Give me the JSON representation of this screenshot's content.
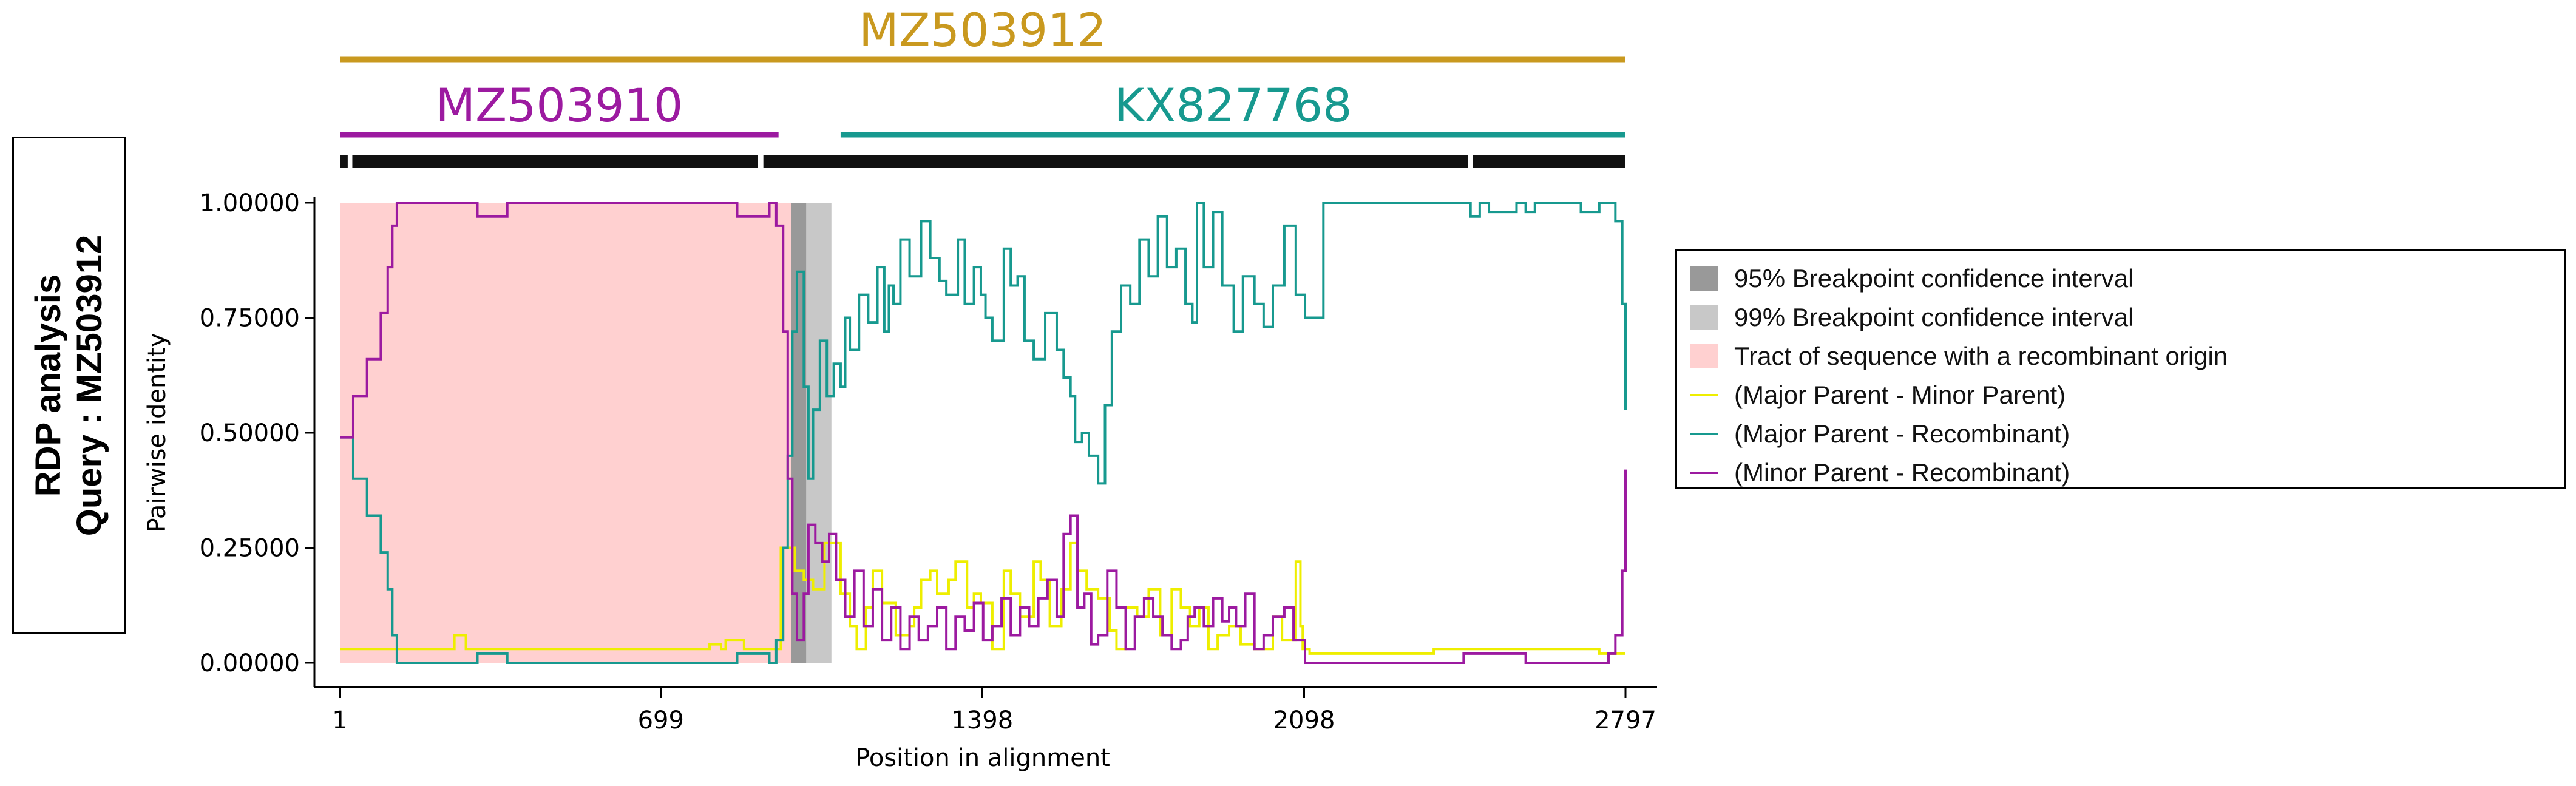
{
  "title": {
    "line1": "RDP analysis",
    "line2": "Query : MZ503912"
  },
  "sequence_bars": [
    {
      "label": "MZ503912",
      "start": 1,
      "end": 2797,
      "color": "#C9991F"
    },
    {
      "label": "MZ503910",
      "start": 1,
      "end": 955,
      "color": "#9C1AA0"
    },
    {
      "label": "KX827768",
      "start": 1090,
      "end": 2797,
      "color": "#17998F"
    }
  ],
  "legend": {
    "items": [
      {
        "label": "95% Breakpoint confidence interval",
        "color": "#999999",
        "kind": "box"
      },
      {
        "label": "99% Breakpoint confidence interval",
        "color": "#C8C8C8",
        "kind": "box"
      },
      {
        "label": "Tract of sequence with a recombinant origin",
        "color": "#FFD0D0",
        "kind": "box"
      },
      {
        "label": "(Major Parent - Minor Parent)",
        "color": "#EEEE00",
        "kind": "line"
      },
      {
        "label": "(Major Parent - Recombinant)",
        "color": "#17998F",
        "kind": "line"
      },
      {
        "label": "(Minor Parent - Recombinant)",
        "color": "#9C1AA0",
        "kind": "line"
      }
    ]
  },
  "chart_data": {
    "type": "line",
    "xlabel": "Position in alignment",
    "ylabel": "Pairwise identity",
    "xlim": [
      1,
      2797
    ],
    "ylim": [
      0,
      1
    ],
    "xticks": [
      1,
      699,
      1398,
      2098,
      2797
    ],
    "xtick_labels": [
      "1",
      "699",
      "1398",
      "2098",
      "2797"
    ],
    "yticks": [
      0,
      0.25,
      0.5,
      0.75,
      1
    ],
    "ytick_labels": [
      "0.00000",
      "0.25000",
      "0.50000",
      "0.75000",
      "1.00000"
    ],
    "recombinant_tract": [
      1,
      1015
    ],
    "breakpoint_ci_95": [
      982,
      1015
    ],
    "breakpoint_ci_99": [
      982,
      1070
    ],
    "informative_sites_track": {
      "start": 1,
      "end": 2797,
      "gaps": [
        [
          18,
          28
        ],
        [
          910,
          922
        ],
        [
          2455,
          2465
        ]
      ]
    },
    "series": [
      {
        "name": "(Major Parent - Minor Parent)",
        "color": "#EEEE00",
        "x": [
          1,
          120,
          240,
          250,
          265,
          275,
          410,
          440,
          790,
          805,
          830,
          840,
          880,
          935,
          960,
          990,
          1010,
          1030,
          1055,
          1090,
          1110,
          1125,
          1145,
          1160,
          1180,
          1210,
          1240,
          1250,
          1265,
          1285,
          1300,
          1325,
          1340,
          1365,
          1380,
          1395,
          1420,
          1445,
          1460,
          1480,
          1510,
          1525,
          1545,
          1570,
          1590,
          1605,
          1625,
          1650,
          1675,
          1690,
          1710,
          1735,
          1760,
          1785,
          1810,
          1830,
          1850,
          1870,
          1890,
          1910,
          1935,
          1960,
          1990,
          2030,
          2050,
          2080,
          2090,
          2095,
          2110,
          2130,
          2380,
          2400,
          2570,
          2585,
          2740,
          2760,
          2797
        ],
        "y": [
          0.03,
          0.03,
          0.03,
          0.06,
          0.06,
          0.03,
          0.03,
          0.03,
          0.03,
          0.04,
          0.03,
          0.05,
          0.03,
          0.03,
          0.25,
          0.2,
          0.18,
          0.16,
          0.26,
          0.15,
          0.08,
          0.03,
          0.12,
          0.2,
          0.13,
          0.06,
          0.08,
          0.12,
          0.18,
          0.2,
          0.15,
          0.18,
          0.22,
          0.12,
          0.15,
          0.13,
          0.03,
          0.2,
          0.15,
          0.1,
          0.22,
          0.18,
          0.08,
          0.16,
          0.26,
          0.2,
          0.16,
          0.14,
          0.07,
          0.03,
          0.12,
          0.1,
          0.16,
          0.06,
          0.16,
          0.12,
          0.08,
          0.12,
          0.03,
          0.06,
          0.08,
          0.04,
          0.03,
          0.1,
          0.05,
          0.22,
          0.08,
          0.03,
          0.02,
          0.02,
          0.03,
          0.03,
          0.03,
          0.03,
          0.02,
          0.02,
          0.02
        ]
      },
      {
        "name": "(Major Parent - Recombinant)",
        "color": "#17998F",
        "x": [
          1,
          30,
          60,
          90,
          105,
          115,
          125,
          280,
          300,
          305,
          350,
          365,
          850,
          865,
          925,
          935,
          950,
          965,
          975,
          985,
          995,
          1010,
          1020,
          1030,
          1045,
          1060,
          1075,
          1090,
          1100,
          1110,
          1130,
          1150,
          1170,
          1185,
          1195,
          1205,
          1220,
          1240,
          1265,
          1285,
          1305,
          1320,
          1345,
          1360,
          1380,
          1395,
          1405,
          1420,
          1445,
          1460,
          1475,
          1490,
          1510,
          1535,
          1560,
          1575,
          1590,
          1600,
          1615,
          1630,
          1650,
          1665,
          1680,
          1700,
          1720,
          1740,
          1760,
          1780,
          1800,
          1820,
          1840,
          1855,
          1865,
          1880,
          1900,
          1920,
          1945,
          1965,
          1990,
          2010,
          2030,
          2055,
          2080,
          2100,
          2140,
          2440,
          2460,
          2480,
          2500,
          2560,
          2580,
          2600,
          2680,
          2700,
          2740,
          2760,
          2775,
          2790,
          2797
        ],
        "y": [
          0.49,
          0.4,
          0.32,
          0.24,
          0.16,
          0.06,
          0.0,
          0.0,
          0.02,
          0.02,
          0.02,
          0.0,
          0.0,
          0.02,
          0.02,
          0.0,
          0.05,
          0.25,
          0.45,
          0.72,
          0.85,
          0.6,
          0.4,
          0.55,
          0.7,
          0.58,
          0.65,
          0.6,
          0.75,
          0.68,
          0.8,
          0.74,
          0.86,
          0.72,
          0.82,
          0.78,
          0.92,
          0.84,
          0.96,
          0.88,
          0.83,
          0.8,
          0.92,
          0.78,
          0.86,
          0.8,
          0.75,
          0.7,
          0.9,
          0.82,
          0.84,
          0.7,
          0.66,
          0.76,
          0.68,
          0.62,
          0.58,
          0.48,
          0.5,
          0.45,
          0.39,
          0.56,
          0.72,
          0.82,
          0.78,
          0.92,
          0.84,
          0.97,
          0.86,
          0.9,
          0.78,
          0.74,
          1.0,
          0.86,
          0.98,
          0.82,
          0.72,
          0.84,
          0.78,
          0.73,
          0.82,
          0.95,
          0.8,
          0.75,
          1.0,
          1.0,
          0.97,
          1.0,
          0.98,
          1.0,
          0.98,
          1.0,
          1.0,
          0.98,
          1.0,
          1.0,
          0.96,
          0.78,
          0.55
        ]
      },
      {
        "name": "(Minor Parent - Recombinant)",
        "color": "#9C1AA0",
        "x": [
          1,
          30,
          60,
          90,
          105,
          115,
          125,
          280,
          300,
          305,
          350,
          365,
          850,
          865,
          925,
          935,
          950,
          965,
          975,
          985,
          995,
          1010,
          1020,
          1035,
          1050,
          1065,
          1080,
          1100,
          1120,
          1140,
          1160,
          1180,
          1200,
          1220,
          1240,
          1260,
          1280,
          1300,
          1320,
          1340,
          1360,
          1380,
          1400,
          1420,
          1440,
          1460,
          1480,
          1500,
          1520,
          1540,
          1560,
          1575,
          1590,
          1605,
          1620,
          1635,
          1650,
          1670,
          1690,
          1710,
          1730,
          1750,
          1770,
          1790,
          1810,
          1830,
          1845,
          1860,
          1880,
          1900,
          1920,
          1935,
          1950,
          1970,
          1990,
          2010,
          2030,
          2055,
          2075,
          2100,
          2140,
          2430,
          2445,
          2500,
          2560,
          2580,
          2600,
          2720,
          2740,
          2760,
          2775,
          2790,
          2797
        ],
        "y": [
          0.49,
          0.58,
          0.66,
          0.76,
          0.86,
          0.95,
          1.0,
          1.0,
          0.97,
          0.97,
          0.97,
          1.0,
          1.0,
          0.97,
          0.97,
          1.0,
          0.95,
          0.72,
          0.4,
          0.15,
          0.05,
          0.15,
          0.3,
          0.26,
          0.22,
          0.28,
          0.18,
          0.1,
          0.2,
          0.08,
          0.16,
          0.05,
          0.12,
          0.03,
          0.1,
          0.05,
          0.08,
          0.12,
          0.03,
          0.1,
          0.07,
          0.13,
          0.05,
          0.08,
          0.14,
          0.06,
          0.12,
          0.08,
          0.14,
          0.18,
          0.1,
          0.28,
          0.32,
          0.12,
          0.15,
          0.04,
          0.06,
          0.2,
          0.12,
          0.03,
          0.1,
          0.14,
          0.1,
          0.06,
          0.03,
          0.05,
          0.1,
          0.12,
          0.08,
          0.14,
          0.09,
          0.12,
          0.08,
          0.15,
          0.03,
          0.06,
          0.1,
          0.12,
          0.05,
          0.0,
          0.0,
          0.0,
          0.02,
          0.02,
          0.02,
          0.0,
          0.0,
          0.0,
          0.0,
          0.02,
          0.06,
          0.2,
          0.42
        ]
      }
    ]
  }
}
